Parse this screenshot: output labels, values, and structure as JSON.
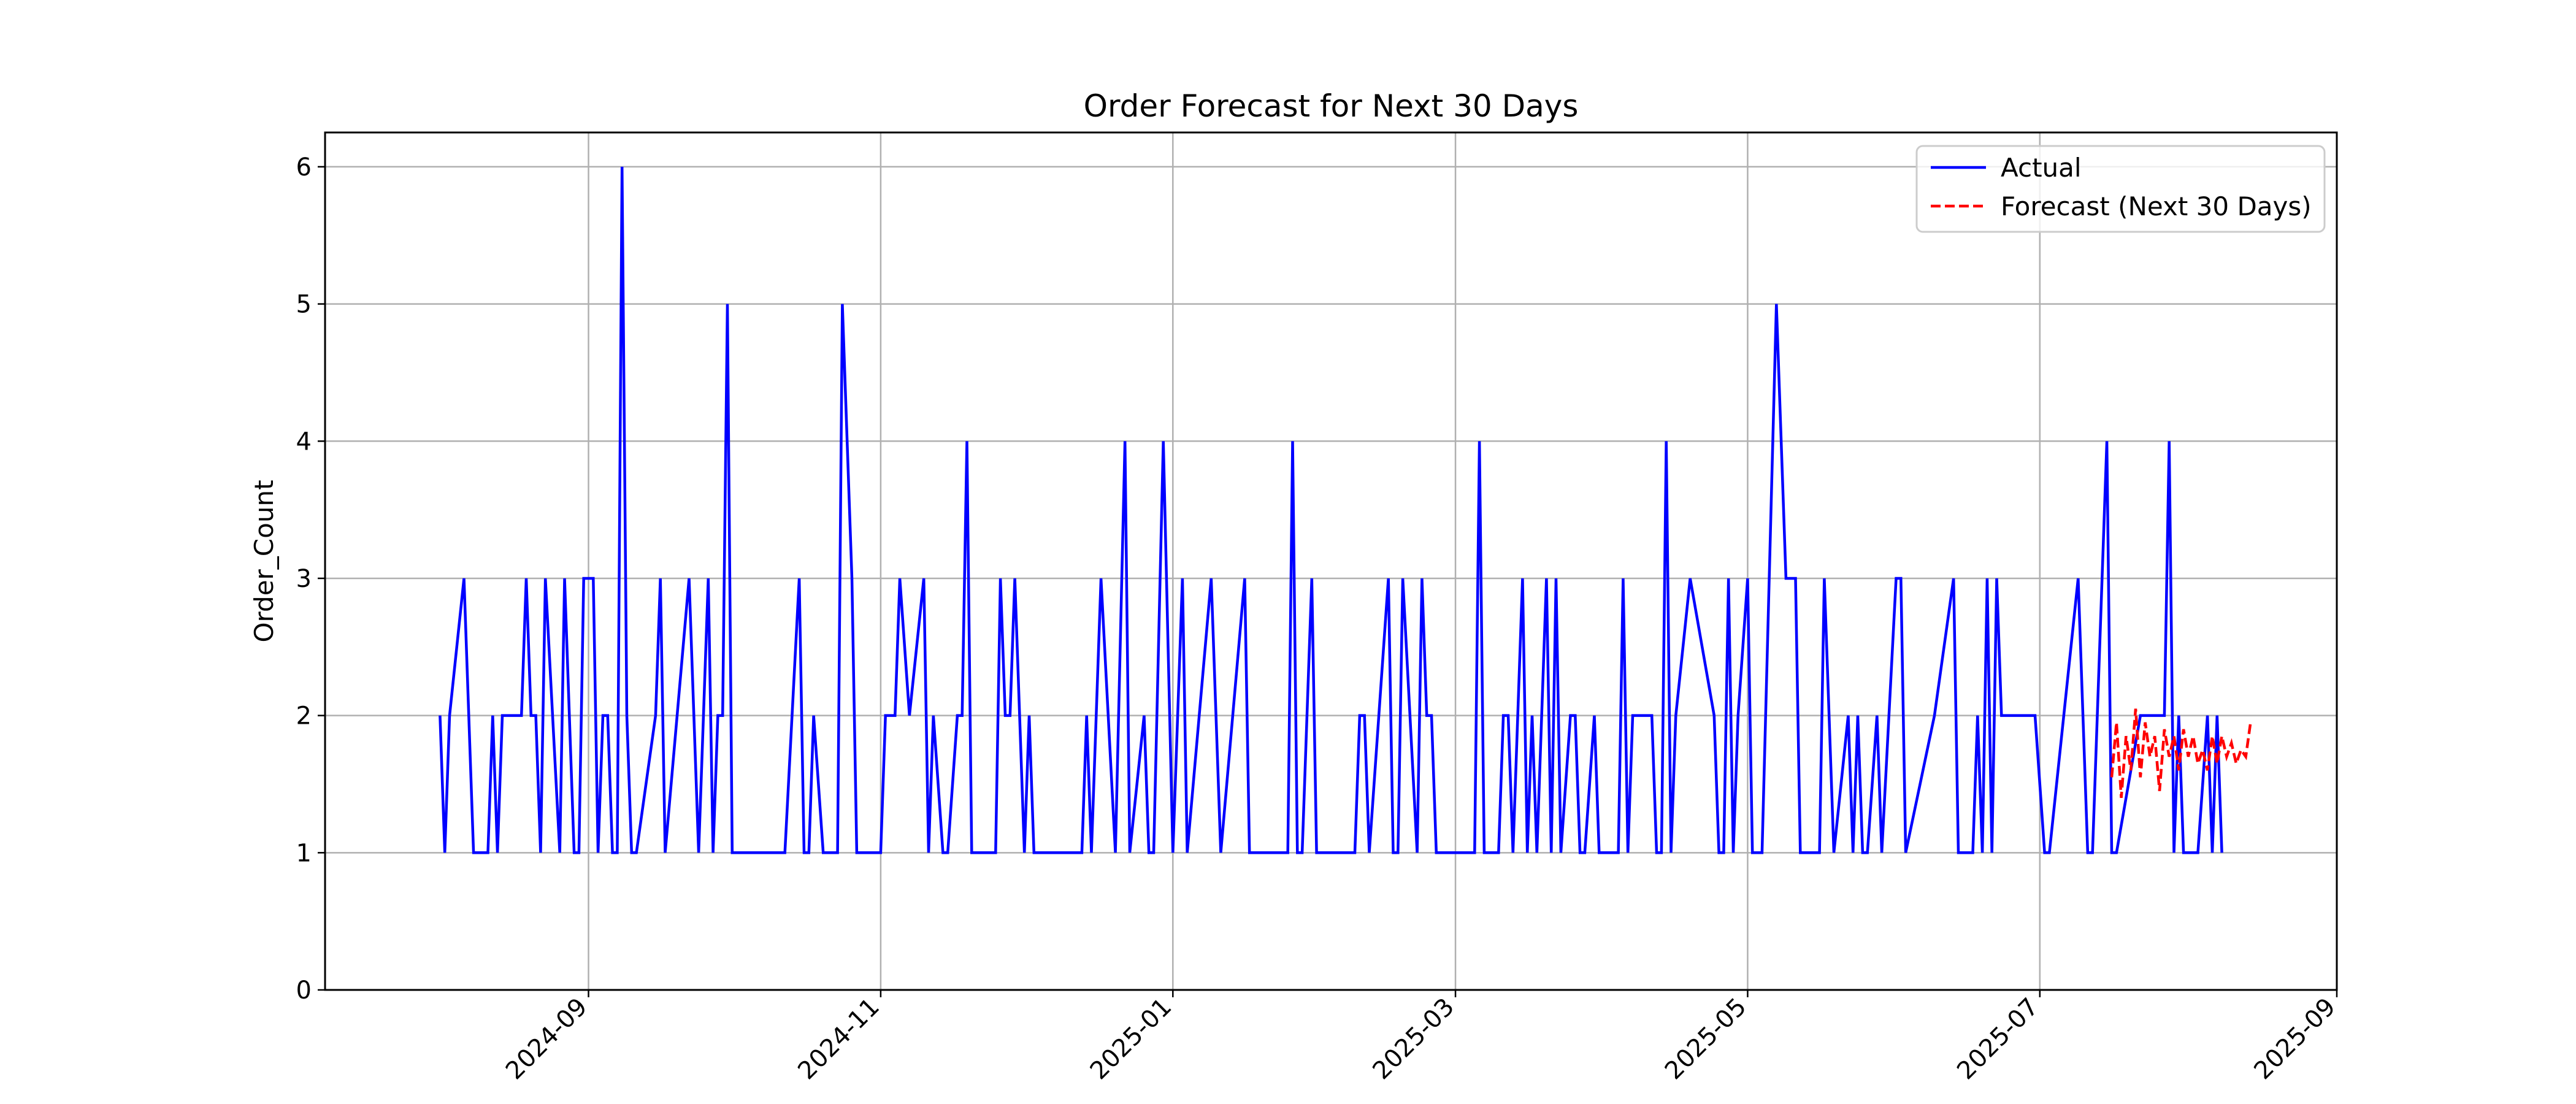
{
  "chart_data": {
    "type": "line",
    "title": "Order Forecast for Next 30 Days",
    "xlabel": "",
    "ylabel": "Order_Count",
    "ylim": [
      0,
      6.25
    ],
    "xlim": [
      "2024-07-08",
      "2025-09-01"
    ],
    "grid": true,
    "legend_position": "top-right",
    "x_ticks": [
      "2024-09",
      "2024-11",
      "2025-01",
      "2025-03",
      "2025-05",
      "2025-07",
      "2025-09"
    ],
    "y_ticks": [
      0,
      1,
      2,
      3,
      4,
      5,
      6
    ],
    "series": [
      {
        "name": "Actual",
        "color": "#0000ff",
        "style": "solid",
        "points": [
          [
            "2024-08-01",
            2
          ],
          [
            "2024-08-02",
            1
          ],
          [
            "2024-08-03",
            2
          ],
          [
            "2024-08-06",
            3
          ],
          [
            "2024-08-08",
            1
          ],
          [
            "2024-08-11",
            1
          ],
          [
            "2024-08-12",
            2
          ],
          [
            "2024-08-13",
            1
          ],
          [
            "2024-08-14",
            2
          ],
          [
            "2024-08-18",
            2
          ],
          [
            "2024-08-19",
            3
          ],
          [
            "2024-08-20",
            2
          ],
          [
            "2024-08-21",
            2
          ],
          [
            "2024-08-22",
            1
          ],
          [
            "2024-08-23",
            3
          ],
          [
            "2024-08-26",
            1
          ],
          [
            "2024-08-27",
            3
          ],
          [
            "2024-08-29",
            1
          ],
          [
            "2024-08-30",
            1
          ],
          [
            "2024-08-31",
            3
          ],
          [
            "2024-09-02",
            3
          ],
          [
            "2024-09-03",
            1
          ],
          [
            "2024-09-04",
            2
          ],
          [
            "2024-09-05",
            2
          ],
          [
            "2024-09-06",
            1
          ],
          [
            "2024-09-07",
            1
          ],
          [
            "2024-09-08",
            6
          ],
          [
            "2024-09-09",
            2
          ],
          [
            "2024-09-10",
            1
          ],
          [
            "2024-09-11",
            1
          ],
          [
            "2024-09-15",
            2
          ],
          [
            "2024-09-16",
            3
          ],
          [
            "2024-09-17",
            1
          ],
          [
            "2024-09-22",
            3
          ],
          [
            "2024-09-24",
            1
          ],
          [
            "2024-09-26",
            3
          ],
          [
            "2024-09-27",
            1
          ],
          [
            "2024-09-28",
            2
          ],
          [
            "2024-09-29",
            2
          ],
          [
            "2024-09-30",
            5
          ],
          [
            "2024-10-01",
            1
          ],
          [
            "2024-10-12",
            1
          ],
          [
            "2024-10-15",
            3
          ],
          [
            "2024-10-16",
            1
          ],
          [
            "2024-10-17",
            1
          ],
          [
            "2024-10-18",
            2
          ],
          [
            "2024-10-20",
            1
          ],
          [
            "2024-10-23",
            1
          ],
          [
            "2024-10-24",
            5
          ],
          [
            "2024-10-26",
            3
          ],
          [
            "2024-10-27",
            1
          ],
          [
            "2024-11-01",
            1
          ],
          [
            "2024-11-02",
            2
          ],
          [
            "2024-11-04",
            2
          ],
          [
            "2024-11-05",
            3
          ],
          [
            "2024-11-07",
            2
          ],
          [
            "2024-11-10",
            3
          ],
          [
            "2024-11-11",
            1
          ],
          [
            "2024-11-12",
            2
          ],
          [
            "2024-11-14",
            1
          ],
          [
            "2024-11-15",
            1
          ],
          [
            "2024-11-17",
            2
          ],
          [
            "2024-11-18",
            2
          ],
          [
            "2024-11-19",
            4
          ],
          [
            "2024-11-20",
            1
          ],
          [
            "2024-11-25",
            1
          ],
          [
            "2024-11-26",
            3
          ],
          [
            "2024-11-27",
            2
          ],
          [
            "2024-11-28",
            2
          ],
          [
            "2024-11-29",
            3
          ],
          [
            "2024-11-30",
            2
          ],
          [
            "2024-12-01",
            1
          ],
          [
            "2024-12-02",
            2
          ],
          [
            "2024-12-03",
            1
          ],
          [
            "2024-12-13",
            1
          ],
          [
            "2024-12-14",
            2
          ],
          [
            "2024-12-15",
            1
          ],
          [
            "2024-12-17",
            3
          ],
          [
            "2024-12-20",
            1
          ],
          [
            "2024-12-22",
            4
          ],
          [
            "2024-12-23",
            1
          ],
          [
            "2024-12-26",
            2
          ],
          [
            "2024-12-27",
            1
          ],
          [
            "2024-12-28",
            1
          ],
          [
            "2024-12-30",
            4
          ],
          [
            "2025-01-01",
            1
          ],
          [
            "2025-01-03",
            3
          ],
          [
            "2025-01-04",
            1
          ],
          [
            "2025-01-09",
            3
          ],
          [
            "2025-01-11",
            1
          ],
          [
            "2025-01-16",
            3
          ],
          [
            "2025-01-17",
            1
          ],
          [
            "2025-01-25",
            1
          ],
          [
            "2025-01-26",
            4
          ],
          [
            "2025-01-27",
            1
          ],
          [
            "2025-01-28",
            1
          ],
          [
            "2025-01-30",
            3
          ],
          [
            "2025-01-31",
            1
          ],
          [
            "2025-02-08",
            1
          ],
          [
            "2025-02-09",
            2
          ],
          [
            "2025-02-10",
            2
          ],
          [
            "2025-02-11",
            1
          ],
          [
            "2025-02-15",
            3
          ],
          [
            "2025-02-16",
            1
          ],
          [
            "2025-02-17",
            1
          ],
          [
            "2025-02-18",
            3
          ],
          [
            "2025-02-21",
            1
          ],
          [
            "2025-02-22",
            3
          ],
          [
            "2025-02-23",
            2
          ],
          [
            "2025-02-24",
            2
          ],
          [
            "2025-02-25",
            1
          ],
          [
            "2025-03-05",
            1
          ],
          [
            "2025-03-06",
            4
          ],
          [
            "2025-03-07",
            1
          ],
          [
            "2025-03-10",
            1
          ],
          [
            "2025-03-11",
            2
          ],
          [
            "2025-03-12",
            2
          ],
          [
            "2025-03-13",
            1
          ],
          [
            "2025-03-15",
            3
          ],
          [
            "2025-03-16",
            1
          ],
          [
            "2025-03-17",
            2
          ],
          [
            "2025-03-18",
            1
          ],
          [
            "2025-03-20",
            3
          ],
          [
            "2025-03-21",
            1
          ],
          [
            "2025-03-22",
            3
          ],
          [
            "2025-03-23",
            1
          ],
          [
            "2025-03-25",
            2
          ],
          [
            "2025-03-26",
            2
          ],
          [
            "2025-03-27",
            1
          ],
          [
            "2025-03-28",
            1
          ],
          [
            "2025-03-30",
            2
          ],
          [
            "2025-03-31",
            1
          ],
          [
            "2025-04-04",
            1
          ],
          [
            "2025-04-05",
            3
          ],
          [
            "2025-04-06",
            1
          ],
          [
            "2025-04-07",
            2
          ],
          [
            "2025-04-08",
            2
          ],
          [
            "2025-04-11",
            2
          ],
          [
            "2025-04-12",
            1
          ],
          [
            "2025-04-13",
            1
          ],
          [
            "2025-04-14",
            4
          ],
          [
            "2025-04-15",
            1
          ],
          [
            "2025-04-16",
            2
          ],
          [
            "2025-04-19",
            3
          ],
          [
            "2025-04-24",
            2
          ],
          [
            "2025-04-25",
            1
          ],
          [
            "2025-04-26",
            1
          ],
          [
            "2025-04-27",
            3
          ],
          [
            "2025-04-28",
            1
          ],
          [
            "2025-04-29",
            2
          ],
          [
            "2025-05-01",
            3
          ],
          [
            "2025-05-02",
            1
          ],
          [
            "2025-05-04",
            1
          ],
          [
            "2025-05-07",
            5
          ],
          [
            "2025-05-09",
            3
          ],
          [
            "2025-05-11",
            3
          ],
          [
            "2025-05-12",
            1
          ],
          [
            "2025-05-14",
            1
          ],
          [
            "2025-05-16",
            1
          ],
          [
            "2025-05-17",
            3
          ],
          [
            "2025-05-19",
            1
          ],
          [
            "2025-05-22",
            2
          ],
          [
            "2025-05-23",
            1
          ],
          [
            "2025-05-24",
            2
          ],
          [
            "2025-05-25",
            1
          ],
          [
            "2025-05-26",
            1
          ],
          [
            "2025-05-28",
            2
          ],
          [
            "2025-05-29",
            1
          ],
          [
            "2025-06-01",
            3
          ],
          [
            "2025-06-02",
            3
          ],
          [
            "2025-06-03",
            1
          ],
          [
            "2025-06-09",
            2
          ],
          [
            "2025-06-13",
            3
          ],
          [
            "2025-06-14",
            1
          ],
          [
            "2025-06-17",
            1
          ],
          [
            "2025-06-18",
            2
          ],
          [
            "2025-06-19",
            1
          ],
          [
            "2025-06-20",
            3
          ],
          [
            "2025-06-21",
            1
          ],
          [
            "2025-06-22",
            3
          ],
          [
            "2025-06-23",
            2
          ],
          [
            "2025-06-30",
            2
          ],
          [
            "2025-07-02",
            1
          ],
          [
            "2025-07-03",
            1
          ],
          [
            "2025-07-09",
            3
          ],
          [
            "2025-07-11",
            1
          ],
          [
            "2025-07-12",
            1
          ],
          [
            "2025-07-15",
            4
          ],
          [
            "2025-07-16",
            1
          ],
          [
            "2025-07-17",
            1
          ],
          [
            "2025-07-22",
            2
          ],
          [
            "2025-07-24",
            2
          ],
          [
            "2025-07-27",
            2
          ],
          [
            "2025-07-28",
            4
          ],
          [
            "2025-07-29",
            1
          ],
          [
            "2025-07-30",
            2
          ],
          [
            "2025-07-31",
            1
          ],
          [
            "2025-08-03",
            1
          ],
          [
            "2025-08-05",
            2
          ],
          [
            "2025-08-06",
            1
          ],
          [
            "2025-08-07",
            2
          ],
          [
            "2025-08-08",
            1
          ]
        ]
      },
      {
        "name": "Forecast (Next 30 Days)",
        "color": "#ff0000",
        "style": "dashed",
        "points": [
          [
            "2025-07-16",
            1.55
          ],
          [
            "2025-07-17",
            1.95
          ],
          [
            "2025-07-18",
            1.4
          ],
          [
            "2025-07-19",
            1.85
          ],
          [
            "2025-07-20",
            1.6
          ],
          [
            "2025-07-21",
            2.05
          ],
          [
            "2025-07-22",
            1.55
          ],
          [
            "2025-07-23",
            1.95
          ],
          [
            "2025-07-24",
            1.7
          ],
          [
            "2025-07-25",
            1.85
          ],
          [
            "2025-07-26",
            1.45
          ],
          [
            "2025-07-27",
            1.9
          ],
          [
            "2025-07-28",
            1.7
          ],
          [
            "2025-07-29",
            1.85
          ],
          [
            "2025-07-30",
            1.6
          ],
          [
            "2025-07-31",
            1.9
          ],
          [
            "2025-08-01",
            1.7
          ],
          [
            "2025-08-02",
            1.85
          ],
          [
            "2025-08-03",
            1.65
          ],
          [
            "2025-08-04",
            1.75
          ],
          [
            "2025-08-05",
            1.6
          ],
          [
            "2025-08-06",
            1.85
          ],
          [
            "2025-08-07",
            1.65
          ],
          [
            "2025-08-08",
            1.85
          ],
          [
            "2025-08-09",
            1.7
          ],
          [
            "2025-08-10",
            1.8
          ],
          [
            "2025-08-11",
            1.65
          ],
          [
            "2025-08-12",
            1.75
          ],
          [
            "2025-08-13",
            1.7
          ],
          [
            "2025-08-14",
            1.95
          ]
        ]
      }
    ]
  }
}
